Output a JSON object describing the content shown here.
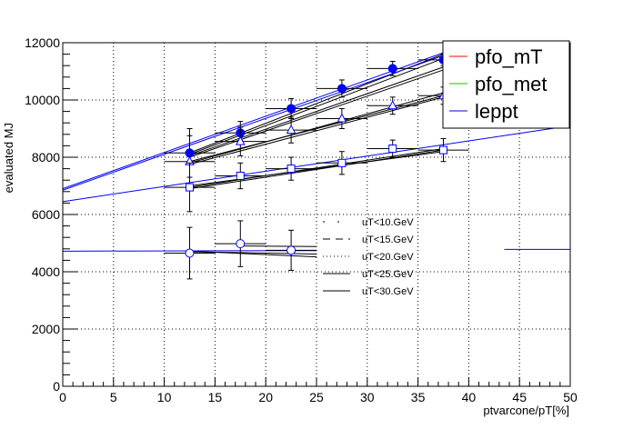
{
  "chart_data": {
    "type": "scatter",
    "title": "",
    "xlabel": "ptvarcone/pT[%]",
    "ylabel": "evaluated MJ",
    "xlim": [
      0,
      50
    ],
    "ylim": [
      0,
      12000
    ],
    "grid": true,
    "x_ticks": [
      0,
      5,
      10,
      15,
      20,
      25,
      30,
      35,
      40,
      45,
      50
    ],
    "y_ticks": [
      0,
      2000,
      4000,
      6000,
      8000,
      10000,
      12000
    ],
    "legend_main": {
      "placement": "top-right",
      "entries": [
        {
          "label": "pfo_mT",
          "color": "#ff0000"
        },
        {
          "label": "pfo_met",
          "color": "#00cc00"
        },
        {
          "label": "leppt",
          "color": "#0000cc"
        }
      ]
    },
    "legend_cuts": {
      "placement": "center",
      "entries": [
        {
          "label": "uT<10.GeV",
          "dash": "2,14"
        },
        {
          "label": "uT<15.GeV",
          "dash": "8,6"
        },
        {
          "label": "uT<20.GeV",
          "dash": "1,3"
        },
        {
          "label": "uT<25.GeV",
          "dash": ""
        },
        {
          "label": "uT<30.GeV",
          "dash": ""
        }
      ]
    },
    "series": [
      {
        "marker": "filled-circle",
        "color": "#0000ff",
        "x": [
          12.5,
          17.5,
          22.5,
          27.5,
          32.5,
          37.5
        ],
        "y": [
          8150,
          8850,
          9700,
          10400,
          11100,
          11400
        ],
        "err": [
          850,
          400,
          350,
          300,
          250,
          200
        ]
      },
      {
        "marker": "open-triangle",
        "color": "#000000",
        "x": [
          12.5,
          17.5,
          22.5,
          27.5,
          32.5,
          37.5
        ],
        "y": [
          7850,
          8550,
          8950,
          9350,
          9800,
          10150
        ],
        "err": [
          900,
          500,
          450,
          350,
          300,
          300
        ]
      },
      {
        "marker": "open-square",
        "color": "#000000",
        "x": [
          12.5,
          17.5,
          22.5,
          27.5,
          32.5,
          37.5
        ],
        "y": [
          6950,
          7350,
          7600,
          7800,
          8300,
          8250
        ],
        "err": [
          850,
          450,
          400,
          400,
          300,
          400
        ]
      },
      {
        "marker": "open-circle",
        "color": "#000000",
        "x": [
          12.5,
          17.5,
          22.5
        ],
        "y": [
          4650,
          4980,
          4750
        ],
        "err": [
          900,
          800,
          700
        ]
      }
    ],
    "fit_lines": [
      {
        "color": "#000000",
        "x": [
          12.5,
          37.5
        ],
        "y": [
          8100,
          11450
        ]
      },
      {
        "color": "#000000",
        "x": [
          12.5,
          37.5
        ],
        "y": [
          8050,
          11150
        ]
      },
      {
        "color": "#000000",
        "x": [
          12.5,
          37.5
        ],
        "y": [
          8000,
          11050
        ]
      },
      {
        "color": "#000000",
        "x": [
          12.5,
          37.5
        ],
        "y": [
          8150,
          11600
        ]
      },
      {
        "color": "#0000ff",
        "x": [
          0,
          37.5
        ],
        "y": [
          6850,
          11550
        ]
      },
      {
        "color": "#0000ff",
        "x": [
          0,
          37.5
        ],
        "y": [
          6900,
          11650
        ]
      },
      {
        "color": "#000000",
        "x": [
          12.5,
          37.5
        ],
        "y": [
          7850,
          10150
        ]
      },
      {
        "color": "#000000",
        "x": [
          12.5,
          37.5
        ],
        "y": [
          7800,
          10250
        ]
      },
      {
        "color": "#000000",
        "x": [
          12.5,
          37.5
        ],
        "y": [
          7750,
          10100
        ]
      },
      {
        "color": "#000000",
        "x": [
          12.5,
          37.5
        ],
        "y": [
          6950,
          8300
        ]
      },
      {
        "color": "#000000",
        "x": [
          12.5,
          37.5
        ],
        "y": [
          6900,
          8250
        ]
      },
      {
        "color": "#000000",
        "x": [
          12.5,
          37.5
        ],
        "y": [
          7000,
          8200
        ]
      },
      {
        "color": "#0000ff",
        "x": [
          0,
          50
        ],
        "y": [
          6450,
          9100
        ]
      },
      {
        "color": "#000000",
        "x": [
          12.5,
          25
        ],
        "y": [
          4700,
          4620
        ]
      },
      {
        "color": "#000000",
        "x": [
          12.5,
          25
        ],
        "y": [
          4720,
          4520
        ]
      },
      {
        "color": "#000000",
        "x": [
          17.5,
          25
        ],
        "y": [
          4900,
          4880
        ]
      },
      {
        "color": "#0000ff",
        "x": [
          0,
          25
        ],
        "y": [
          4720,
          4740
        ]
      },
      {
        "color": "#0000ff",
        "x": [
          43.5,
          50
        ],
        "y": [
          4780,
          4780
        ]
      }
    ]
  }
}
